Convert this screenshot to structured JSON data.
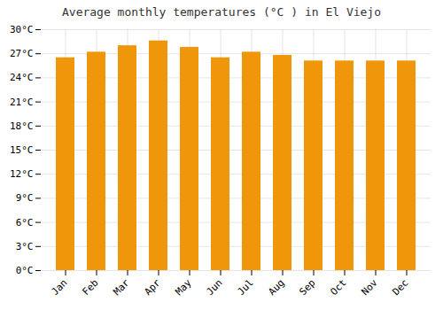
{
  "chart_data": {
    "type": "bar",
    "title": "Average monthly temperatures (°C ) in El Viejo",
    "categories": [
      "Jan",
      "Feb",
      "Mar",
      "Apr",
      "May",
      "Jun",
      "Jul",
      "Aug",
      "Sep",
      "Oct",
      "Nov",
      "Dec"
    ],
    "values": [
      26.5,
      27.2,
      28.0,
      28.6,
      27.8,
      26.5,
      27.2,
      26.8,
      26.1,
      26.1,
      26.1,
      26.1
    ],
    "color": "#F0960A",
    "ylim": [
      0,
      30
    ],
    "yticks": [
      {
        "value": 0,
        "label": "0°C"
      },
      {
        "value": 3,
        "label": "3°C"
      },
      {
        "value": 6,
        "label": "6°C"
      },
      {
        "value": 9,
        "label": "9°C"
      },
      {
        "value": 12,
        "label": "12°C"
      },
      {
        "value": 15,
        "label": "15°C"
      },
      {
        "value": 18,
        "label": "18°C"
      },
      {
        "value": 21,
        "label": "21°C"
      },
      {
        "value": 24,
        "label": "24°C"
      },
      {
        "value": 27,
        "label": "27°C"
      },
      {
        "value": 30,
        "label": "30°C"
      }
    ],
    "grid": true
  }
}
